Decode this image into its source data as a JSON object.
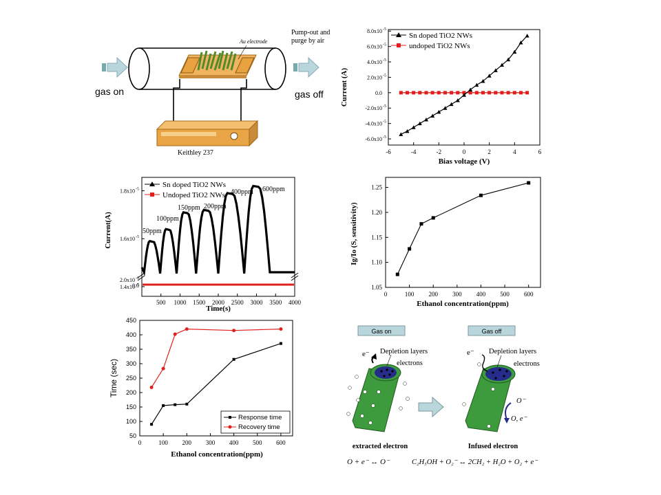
{
  "setup": {
    "gas_on": "gas on",
    "gas_off": "gas off",
    "pump_line1": "Pump-out and",
    "pump_line2": "purge by air",
    "electrode": "Au electrode",
    "meter": "Keithley 237"
  },
  "iv_chart": {
    "legend": [
      "Sn doped TiO2 NWs",
      "undoped TiO2 NWs"
    ],
    "xlabel": "Bias voltage (V)",
    "ylabel": "Current (A)",
    "xticks": [
      "-6",
      "-4",
      "-2",
      "0",
      "2",
      "4",
      "6"
    ],
    "yticks": [
      "8.0x10",
      "6.0x10",
      "4.0x10",
      "2.0x10",
      "0.0",
      "-2.0x10",
      "-4.0x10",
      "-6.0x10"
    ]
  },
  "response_chart": {
    "legend": [
      "Sn doped TiO2 NWs",
      "Undoped TiO2 NWs"
    ],
    "xlabel": "Time(s)",
    "ylabel": "Current(A)",
    "annotations": [
      "50ppm",
      "100ppm",
      "150ppm",
      "200ppm",
      "400ppm",
      "600ppm"
    ]
  },
  "sensitivity_chart": {
    "xlabel": "Ethanol concentration(ppm)",
    "ylabel": "Ig/Io (S, sensitivity)"
  },
  "time_chart": {
    "xlabel": "Ethanol concentration(ppm)",
    "ylabel": "Time (sec)",
    "legend": [
      "Response time",
      "Recovery time"
    ]
  },
  "mechanism": {
    "gas_on": "Gas on",
    "gas_off": "Gas off",
    "depletion": "Depletion layers",
    "electrons": "electrons",
    "extracted": "extracted electron",
    "infused": "Infused electron",
    "eq_left": "O + e⁻ ↔ O⁻",
    "eq_right": "C₂H₅OH + O₂⁻ ↔ 2CH₂ + H₂O + O₂ + e⁻",
    "o_minus": "O⁻",
    "o_e": "O, e⁻",
    "e_minus": "e⁻"
  },
  "chart_data": [
    {
      "type": "line",
      "title": "",
      "xlabel": "Bias voltage (V)",
      "ylabel": "Current (A)",
      "xlim": [
        -6,
        6
      ],
      "ylim": [
        -6.8e-05,
        8.2e-05
      ],
      "series": [
        {
          "name": "Sn doped TiO2 NWs",
          "color": "#000000",
          "x": [
            -5,
            -4.5,
            -4,
            -3.5,
            -3,
            -2.5,
            -2,
            -1.5,
            -1,
            -0.5,
            0,
            0.5,
            1,
            1.5,
            2,
            2.5,
            3,
            3.5,
            4,
            4.5,
            5
          ],
          "y": [
            -5.4e-05,
            -5e-05,
            -4.5e-05,
            -4e-05,
            -3.5e-05,
            -3e-05,
            -2.5e-05,
            -2e-05,
            -1.5e-05,
            -1e-05,
            -3e-06,
            4e-06,
            1e-05,
            1.5e-05,
            2.2e-05,
            2.9e-05,
            3.6e-05,
            4.3e-05,
            5.3e-05,
            6.5e-05,
            7.4e-05
          ]
        },
        {
          "name": "undoped TiO2 NWs",
          "color": "#e0201c",
          "x": [
            -5,
            -4.5,
            -4,
            -3.5,
            -3,
            -2.5,
            -2,
            -1.5,
            -1,
            -0.5,
            0,
            0.5,
            1,
            1.5,
            2,
            2.5,
            3,
            3.5,
            4,
            4.5,
            5
          ],
          "y": [
            0,
            0,
            0,
            0,
            0,
            0,
            0,
            0,
            0,
            0,
            0,
            0,
            0,
            0,
            0,
            0,
            0,
            0,
            0,
            0,
            0
          ]
        }
      ]
    },
    {
      "type": "line",
      "title": "",
      "xlabel": "Time(s)",
      "ylabel": "Current(A)",
      "xlim": [
        0,
        4000
      ],
      "series": [
        {
          "name": "Sn doped TiO2 NWs",
          "color": "#000000",
          "peaks": [
            [
              50,
              1.59e-05
            ],
            [
              100,
              1.64e-05
            ],
            [
              150,
              1.71e-05
            ],
            [
              200,
              1.72e-05
            ],
            [
              400,
              1.79e-05
            ],
            [
              600,
              1.82e-05
            ]
          ]
        },
        {
          "name": "Undoped TiO2 NWs",
          "color": "#e0201c",
          "y": 0
        }
      ]
    },
    {
      "type": "line",
      "title": "",
      "xlabel": "Ethanol concentration(ppm)",
      "ylabel": "Ig/Io (S, sensitivity)",
      "xlim": [
        0,
        650
      ],
      "ylim": [
        1.05,
        1.27
      ],
      "x": [
        50,
        100,
        150,
        200,
        400,
        600
      ],
      "y": [
        1.076,
        1.127,
        1.177,
        1.189,
        1.234,
        1.259
      ]
    },
    {
      "type": "line",
      "title": "",
      "xlabel": "Ethanol concentration(ppm)",
      "ylabel": "Time (sec)",
      "xlim": [
        0,
        650
      ],
      "ylim": [
        50,
        450
      ],
      "x": [
        50,
        100,
        150,
        200,
        400,
        600
      ],
      "series": [
        {
          "name": "Response time",
          "color": "#000000",
          "values": [
            90,
            155,
            158,
            160,
            315,
            370
          ]
        },
        {
          "name": "Recovery time",
          "color": "#e0201c",
          "values": [
            218,
            283,
            402,
            420,
            415,
            420
          ]
        }
      ]
    }
  ]
}
